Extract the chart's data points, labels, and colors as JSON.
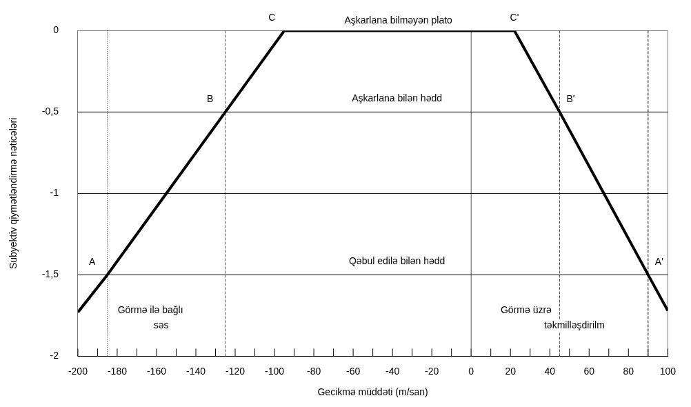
{
  "chart_data": {
    "type": "line",
    "xlabel": "Gecikmə müddəti (m/san)",
    "ylabel": "Subyektiv qiymətləndirmə nəticələri",
    "series": [
      {
        "color": "#000000",
        "x": [
          -200,
          -185,
          -125,
          -95,
          22,
          45,
          90,
          100
        ],
        "values": [
          -1.73,
          -1.5,
          -0.5,
          0,
          0,
          -0.5,
          -1.5,
          -1.72
        ]
      }
    ],
    "xlim": [
      -200,
      100
    ],
    "xticks": [
      -200,
      {
        "value": -190,
        "label": null
      },
      -180,
      {
        "value": -170,
        "label": null
      },
      -160,
      {
        "value": -150,
        "label": null
      },
      -140,
      {
        "value": -130,
        "label": null
      },
      -120,
      {
        "value": -110,
        "label": null
      },
      -100,
      {
        "value": -90,
        "label": null
      },
      -80,
      {
        "value": -70,
        "label": null
      },
      -60,
      {
        "value": -50,
        "label": null
      },
      -40,
      {
        "value": -30,
        "label": null
      },
      -20,
      {
        "value": -10,
        "label": null
      },
      0,
      {
        "value": 10,
        "label": null
      },
      20,
      {
        "value": 30,
        "label": null
      },
      40,
      {
        "value": 50,
        "label": null
      },
      60,
      {
        "value": 70,
        "label": null
      },
      80,
      {
        "value": 90,
        "label": null
      },
      100
    ],
    "ylim": [
      -2,
      0
    ],
    "yticks": [
      {
        "value": 0,
        "label": "0"
      },
      {
        "value": -0.5,
        "label": "-0,5"
      },
      {
        "value": -1,
        "label": "-1"
      },
      {
        "value": -1.5,
        "label": "-1,5"
      },
      {
        "value": -2,
        "label": "-2"
      }
    ],
    "grid": false,
    "marker": "none",
    "line_style": "solid",
    "legend": false,
    "ref_lines": [
      {
        "axis": "x",
        "value": -185,
        "line_style": "dotted",
        "color": "#000000"
      },
      {
        "axis": "x",
        "value": -125,
        "line_style": "dashed",
        "color": "#555555"
      },
      {
        "axis": "x",
        "value": 0,
        "line_style": "solid",
        "color": "#555555"
      },
      {
        "axis": "x",
        "value": 45,
        "line_style": "dashed",
        "color": "#555555"
      },
      {
        "axis": "x",
        "value": 90,
        "line_style": "dashed",
        "color": "#000000"
      },
      {
        "axis": "y",
        "value": -0.5,
        "label": "Aşkarlana bilən hədd",
        "color": "#000000"
      },
      {
        "axis": "y",
        "value": -1,
        "color": "#000000"
      },
      {
        "axis": "y",
        "value": -1.5,
        "label": "Qəbul edilə bilən hədd",
        "color": "#000000"
      }
    ],
    "annotations": [
      {
        "text": "A",
        "x": -185,
        "y": -1.5
      },
      {
        "text": "B",
        "x": -125,
        "y": -0.5
      },
      {
        "text": "C",
        "x": -95,
        "y": 0
      },
      {
        "text": "C'",
        "x": 22,
        "y": 0
      },
      {
        "text": "B'",
        "x": 45,
        "y": -0.5
      },
      {
        "text": "A'",
        "x": 90,
        "y": -1.5
      },
      {
        "text": "Aşkarlana bilməyən plato",
        "x": -37,
        "y": 0
      },
      "Görmə ilə bağlı\nsəs",
      "Görmə üzrə\ntəkmilləşdirilm"
    ]
  }
}
